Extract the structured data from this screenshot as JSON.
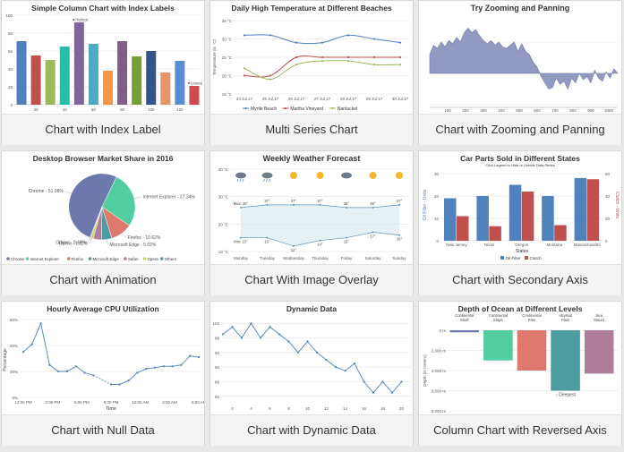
{
  "cards": [
    {
      "caption": "Chart with Index Label",
      "chart_data": {
        "type": "bar",
        "title": "Simple Column Chart with Index Labels",
        "x": [
          10,
          20,
          30,
          40,
          50,
          60,
          70,
          80,
          90,
          100,
          110,
          120,
          130
        ],
        "values": [
          71,
          55,
          50,
          65,
          92,
          68,
          38,
          71,
          54,
          60,
          36,
          49,
          21
        ],
        "colors": [
          "#4f81bc",
          "#c0504e",
          "#9bbb58",
          "#23bfaa",
          "#8064a1",
          "#4aacc5",
          "#f79647",
          "#7f6084",
          "#77a033",
          "#33558b",
          "#e59566",
          "#558ed5",
          "#cd4a50"
        ],
        "xticks": [
          20,
          40,
          60,
          80,
          100,
          120
        ],
        "yticks": [
          0,
          20,
          40,
          60,
          80,
          100
        ],
        "ylim": [
          0,
          100
        ],
        "labels": [
          {
            "index": 4,
            "text": "Highest"
          },
          {
            "index": 12,
            "text": "Lowest"
          }
        ]
      }
    },
    {
      "caption": "Multi Series Chart",
      "chart_data": {
        "type": "line",
        "title": "Daily High Temperature at Different Beaches",
        "ylabel": "Temperature (in °C)",
        "categories": [
          "24 Jul,17",
          "25 Jul,17",
          "26 Jul,17",
          "27 Jul,17",
          "28 Jul,17",
          "29 Jul,17",
          "30 Jul,17"
        ],
        "yticks": [
          15,
          20,
          25,
          30,
          35
        ],
        "ylim": [
          15,
          35
        ],
        "tick_suffix": " °C",
        "series": [
          {
            "name": "Myrtle Beach",
            "color": "#4f81bc",
            "values": [
              31,
              31,
              29,
              29,
              31,
              30,
              29
            ]
          },
          {
            "name": "Martha Vineyard",
            "color": "#c0504e",
            "values": [
              20,
              20,
              25,
              25,
              25,
              25,
              25
            ]
          },
          {
            "name": "Nantucket",
            "color": "#9bbb58",
            "values": [
              22,
              19,
              23,
              24,
              24,
              23,
              23
            ]
          }
        ],
        "legend": "bottom"
      }
    },
    {
      "caption": "Chart with Zooming and Panning",
      "chart_data": {
        "type": "area",
        "title": "Try Zooming and Panning",
        "xticks": [
          100,
          200,
          300,
          400,
          500,
          600,
          700,
          800,
          900,
          1000
        ],
        "xlim": [
          0,
          1050
        ],
        "ylim": [
          -1000,
          1800
        ],
        "values": [
          600,
          900,
          800,
          1000,
          850,
          1050,
          950,
          1150,
          1000,
          1300,
          1450,
          1300,
          1400,
          1200,
          1050,
          950,
          1050,
          900,
          1000,
          850,
          800,
          900,
          1000,
          700,
          950,
          700,
          600,
          350,
          200,
          -100,
          -300,
          -500,
          -450,
          -150,
          -350,
          -250,
          -500,
          -150,
          -300,
          0,
          -200,
          -100,
          -300,
          100,
          -150,
          -250,
          50,
          -150,
          150,
          0
        ],
        "color": "#6d78ad"
      }
    },
    {
      "caption": "Chart with Animation",
      "chart_data": {
        "type": "pie",
        "title": "Desktop Browser Market Share in 2016",
        "series": [
          {
            "name": "Chrome",
            "value": 51.08,
            "color": "#6d78ad",
            "label": "Chrome - 51.08%"
          },
          {
            "name": "Internet Explorer",
            "value": 27.34,
            "color": "#51cda0",
            "label": "Internet Explorer - 27.34%"
          },
          {
            "name": "Firefox",
            "value": 10.62,
            "color": "#df7970",
            "label": "Firefox - 10.62%"
          },
          {
            "name": "Microsoft Edge",
            "value": 5.02,
            "color": "#4c9ca0",
            "label": "Microsoft Edge - 5.02%"
          },
          {
            "name": "Safari",
            "value": 4.07,
            "color": "#ae7d99",
            "label": ""
          },
          {
            "name": "Opera",
            "value": 1.22,
            "color": "#c9d45c",
            "label": "Opera - 1.22%"
          },
          {
            "name": "Others",
            "value": 0.44,
            "color": "#5592ad",
            "label": "Others - 0.44%"
          }
        ],
        "legend": "bottom"
      }
    },
    {
      "caption": "Chart With Image Overlay",
      "chart_data": {
        "type": "area",
        "title": "Weekly Weather Forecast",
        "categories": [
          "Monday",
          "Tuesday",
          "Wednesday",
          "Thursday",
          "Friday",
          "Saturday",
          "Sunday"
        ],
        "yticks": [
          10,
          20,
          30,
          40
        ],
        "ylim": [
          10,
          40
        ],
        "tick_suffix": " °C",
        "max": [
          26,
          27,
          27,
          27,
          26,
          26,
          27
        ],
        "min": [
          15,
          15,
          12,
          14,
          15,
          17,
          16
        ],
        "max_labels": [
          "Max: 26°",
          "27°",
          "27°",
          "27°",
          "26°",
          "26°",
          "27°"
        ],
        "min_labels": [
          "Min: 15°",
          "15°",
          "12°",
          "14°",
          "15°",
          "17°",
          "16°"
        ],
        "icons": [
          "rain-cloud-icon",
          "rain-cloud-icon",
          "sun-icon",
          "sun-icon",
          "cloud-icon",
          "sun-icon",
          "sun-icon"
        ],
        "color": "#5f94bd"
      }
    },
    {
      "caption": "Chart with Secondary Axis",
      "chart_data": {
        "type": "bar",
        "title": "Car Parts Sold in Different States",
        "subtitle": "Click Legend to Hide or Unhide Data Series",
        "xlabel": "States",
        "ylabel": "Oil Filter - Units",
        "y2label": "Clutch - Units",
        "categories": [
          "New Jersey",
          "Texas",
          "Oregon",
          "Montana",
          "Massachusetts"
        ],
        "yticks": [
          0,
          10,
          20,
          30
        ],
        "ylim": [
          0,
          32
        ],
        "y2ticks": [
          0,
          20,
          40,
          60
        ],
        "y2lim": [
          0,
          64
        ],
        "series": [
          {
            "name": "Oil Filter",
            "color": "#4f81bc",
            "axis": "left",
            "values": [
              19,
              20,
              25,
              20,
              28
            ]
          },
          {
            "name": "Clutch",
            "color": "#c0504e",
            "axis": "right",
            "values": [
              22,
              13,
              44,
              14,
              55
            ]
          }
        ],
        "legend": "bottom"
      }
    },
    {
      "caption": "Chart with Null Data",
      "chart_data": {
        "type": "line",
        "title": "Hourly Average CPU Utilization",
        "xlabel": "Time",
        "ylabel": "Percentage",
        "xticks": [
          "12:00 PM",
          "3:00 PM",
          "6:00 PM",
          "9:00 PM",
          "12:00 AM",
          "3:00 AM",
          "6:00 AM"
        ],
        "yticks": [
          0,
          20,
          40,
          60
        ],
        "ylim": [
          0,
          60
        ],
        "tick_suffix": "%",
        "values": [
          35,
          41,
          57,
          25,
          20,
          20,
          24,
          19,
          17,
          null,
          10,
          10,
          13,
          19,
          22,
          23,
          24,
          24,
          25,
          32,
          31
        ],
        "color": "#4f81bc"
      }
    },
    {
      "caption": "Chart with Dynamic Data",
      "chart_data": {
        "type": "line",
        "title": "Dynamic Data",
        "xticks": [
          2,
          4,
          6,
          8,
          10,
          12,
          14,
          16,
          18,
          20
        ],
        "xlim": [
          1,
          21
        ],
        "yticks": [
          82,
          86,
          90,
          94,
          98,
          102
        ],
        "ylim": [
          80,
          104
        ],
        "values": [
          99,
          101,
          98,
          102,
          98,
          101,
          99,
          97,
          94,
          97,
          94,
          92,
          90,
          89,
          91,
          86,
          83,
          86,
          83,
          86
        ],
        "color": "#4f81bc"
      }
    },
    {
      "caption": "Column Chart with Reversed Axis",
      "chart_data": {
        "type": "bar",
        "title": "Depth of Ocean at Different Levels",
        "ylabel": "Depth (in meters)",
        "categories": [
          "Continental Shelf",
          "Continental Slope",
          "Continental Rise",
          "Abyssal Plain",
          "Sea Mount"
        ],
        "values": [
          200,
          3000,
          4000,
          6000,
          4300
        ],
        "colors": [
          "#6d78ad",
          "#51cda0",
          "#df7970",
          "#4c9ca0",
          "#ae7d99"
        ],
        "yticks": [
          "0 m",
          "2,000 m",
          "4,000 m",
          "6,000 m",
          "8,000 m"
        ],
        "ylim": [
          0,
          8000
        ],
        "labels": [
          {
            "index": 3,
            "text": "↓ Deepest"
          }
        ]
      }
    }
  ]
}
